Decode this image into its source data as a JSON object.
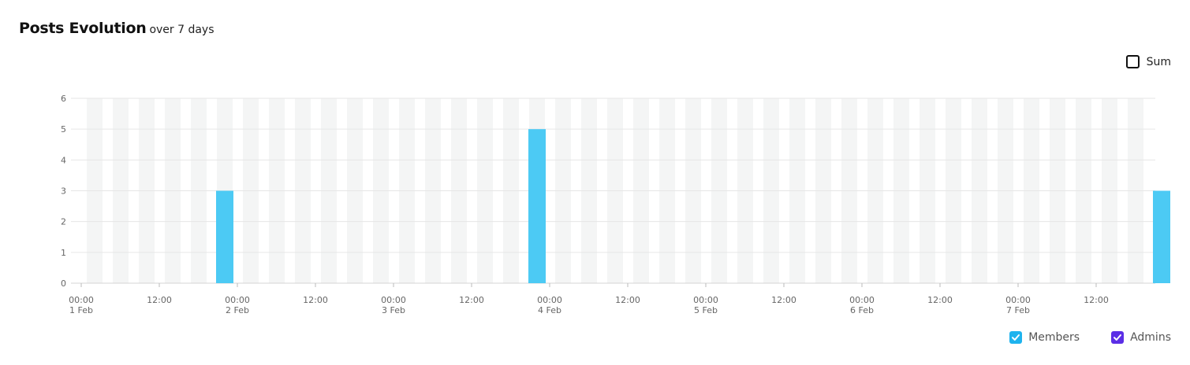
{
  "header": {
    "title": "Posts Evolution",
    "subtitle": "over 7 days"
  },
  "toggle": {
    "label": "Sum",
    "checked": false
  },
  "legend": [
    {
      "label": "Members",
      "color": "#1eb3ee",
      "checked": true,
      "icon": "checkmark-icon"
    },
    {
      "label": "Admins",
      "color": "#5b2ee6",
      "checked": true,
      "icon": "checkmark-icon"
    }
  ],
  "chart_data": {
    "type": "bar",
    "ylim": [
      0,
      6
    ],
    "y_ticks": [
      "0",
      "1",
      "2",
      "3",
      "4",
      "5",
      "6"
    ],
    "x_tick_labels": [
      [
        "00:00",
        "1 Feb"
      ],
      [
        "12:00",
        ""
      ],
      [
        "00:00",
        "2 Feb"
      ],
      [
        "12:00",
        ""
      ],
      [
        "00:00",
        "3 Feb"
      ],
      [
        "12:00",
        ""
      ],
      [
        "00:00",
        "4 Feb"
      ],
      [
        "12:00",
        ""
      ],
      [
        "00:00",
        "5 Feb"
      ],
      [
        "12:00",
        ""
      ],
      [
        "00:00",
        "6 Feb"
      ],
      [
        "12:00",
        ""
      ],
      [
        "00:00",
        "7 Feb"
      ],
      [
        "12:00",
        ""
      ]
    ],
    "series": [
      {
        "name": "Members",
        "color": "#4ccaf4",
        "points": [
          {
            "x": "1 Feb 12:00",
            "y": 3
          },
          {
            "x": "3 Feb 12:00",
            "y": 5
          },
          {
            "x": "7 Feb 12:00",
            "y": 3
          }
        ]
      },
      {
        "name": "Admins",
        "color": "#5b2ee6",
        "points": []
      }
    ]
  }
}
